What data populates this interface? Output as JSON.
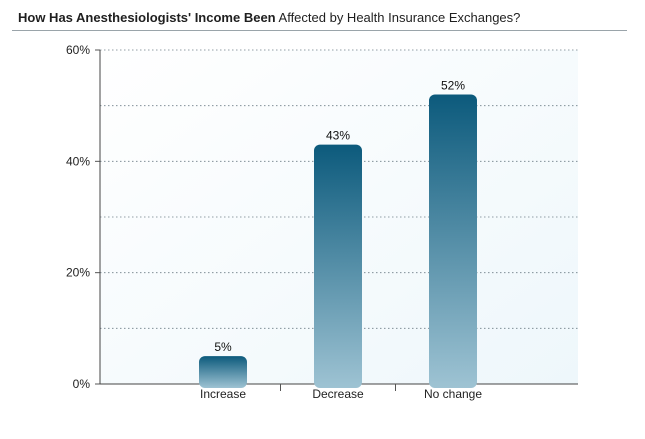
{
  "title_bold": "How Has Anesthesiologists' Income Been",
  "title_rest": " Affected by Health Insurance Exchanges?",
  "chart_data": {
    "type": "bar",
    "categories": [
      "Increase",
      "Decrease",
      "No change"
    ],
    "values": [
      5,
      43,
      52
    ],
    "data_labels": [
      "5%",
      "43%",
      "52%"
    ],
    "title": "How Has Anesthesiologists' Income Been Affected by Health Insurance Exchanges?",
    "xlabel": "",
    "ylabel": "",
    "ylim": [
      0,
      60
    ],
    "y_ticks": [
      0,
      20,
      40,
      60
    ],
    "y_tick_labels": [
      "0%",
      "20%",
      "40%",
      "60%"
    ],
    "grid": true,
    "bar_color": "#0c5a7c",
    "bar_color_light": "#9ec3d3",
    "plot_background": "#eef7fb"
  }
}
